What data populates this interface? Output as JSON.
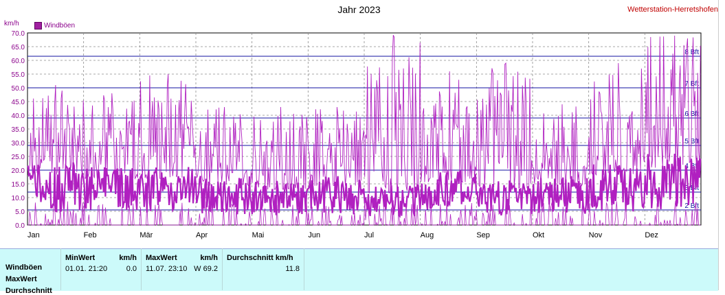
{
  "header": {
    "title": "Jahr 2023",
    "station": "Wetterstation-Herretshofen",
    "unit": "km/h",
    "legend_label": "Windböen"
  },
  "colors": {
    "series": "#b020c0",
    "beaufort_lines": "#1010a0",
    "grid": "#8a8a8a",
    "axis_text": "#8b008b",
    "panel_bg": "#ccfafa"
  },
  "chart_data": {
    "type": "line",
    "title": "Jahr 2023",
    "ylabel": "km/h",
    "ylim": [
      0,
      70
    ],
    "yticks": [
      "0.0",
      "5.0",
      "10.0",
      "15.0",
      "20.0",
      "25.0",
      "30.0",
      "35.0",
      "40.0",
      "45.0",
      "50.0",
      "55.0",
      "60.0",
      "65.0",
      "70.0"
    ],
    "months": [
      "Jan",
      "Feb",
      "Mär",
      "Apr",
      "Mai",
      "Jun",
      "Jul",
      "Aug",
      "Sep",
      "Okt",
      "Nov",
      "Dez"
    ],
    "grid": true,
    "legend": "top-left",
    "beaufort": [
      {
        "label": "2 Bft",
        "value": 5.5
      },
      {
        "label": "3 Bft",
        "value": 12
      },
      {
        "label": "4 Bft",
        "value": 20
      },
      {
        "label": "5 Bft",
        "value": 29
      },
      {
        "label": "6 Bft",
        "value": 39
      },
      {
        "label": "7 Bft",
        "value": 50
      },
      {
        "label": "8 Bft",
        "value": 61.5
      }
    ],
    "series": [
      {
        "name": "Windböen",
        "description": "Monthly extremes of the gust series (approximate)",
        "monthly_max": [
          51,
          48,
          55,
          43,
          43,
          43,
          69.2,
          56,
          59,
          44,
          59,
          69
        ],
        "monthly_typical_mean": [
          14,
          13,
          13,
          11,
          10,
          11,
          9,
          12,
          10,
          11,
          14,
          16
        ]
      }
    ]
  },
  "stats": {
    "rows": [
      "Windböen",
      "MaxWert",
      "Durchschnitt"
    ],
    "min": {
      "header": "MinWert",
      "unit": "km/h",
      "date": "01.01.  21:20",
      "value": "0.0"
    },
    "max": {
      "header": "MaxWert",
      "unit": "km/h",
      "date": "11.07.  23:10",
      "value": "W 69.2"
    },
    "avg": {
      "header": "Durchschnitt km/h",
      "value": "11.8"
    }
  }
}
